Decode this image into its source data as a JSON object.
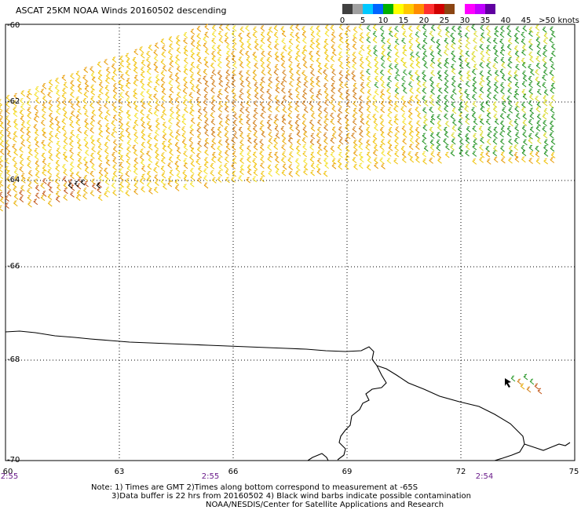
{
  "title": "ASCAT 25KM NOAA Winds 20160502 descending",
  "colorbar": {
    "colors": [
      "#404040",
      "#a0a0a0",
      "#00c8ff",
      "#0064ff",
      "#00b000",
      "#ffff00",
      "#ffc800",
      "#ff8c00",
      "#ff3030",
      "#d00000",
      "#8b4513",
      "#ffffff",
      "#ff00ff",
      "#c000ff",
      "#6000a0"
    ],
    "labels": [
      "0",
      "5",
      "10",
      "15",
      "20",
      "25",
      "30",
      "35",
      "40",
      "45",
      ">50 knots"
    ]
  },
  "map": {
    "lat_labels": [
      "-60",
      "-62",
      "-64",
      "-66",
      "-68",
      "-70"
    ],
    "lon_labels": [
      "60",
      "63",
      "66",
      "69",
      "72",
      "75"
    ],
    "time_labels": [
      "2:55",
      "2:55",
      "2:54"
    ]
  },
  "notes": {
    "line1": "Note: 1) Times are GMT 2)Times along bottom correspond to measurement at -65S",
    "line2": "3)Data buffer is 22 hrs from 20160502 4) Black wind barbs indicate possible contamination",
    "line3": "NOAA/NESDIS/Center for Satellite Applications and Research"
  }
}
